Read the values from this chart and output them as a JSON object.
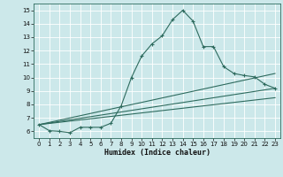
{
  "xlabel": "Humidex (Indice chaleur)",
  "bg_color": "#cce8ea",
  "grid_color": "#ffffff",
  "line_color": "#2e6b5e",
  "xlim": [
    -0.5,
    23.5
  ],
  "ylim": [
    5.5,
    15.5
  ],
  "xticks": [
    0,
    1,
    2,
    3,
    4,
    5,
    6,
    7,
    8,
    9,
    10,
    11,
    12,
    13,
    14,
    15,
    16,
    17,
    18,
    19,
    20,
    21,
    22,
    23
  ],
  "yticks": [
    6,
    7,
    8,
    9,
    10,
    11,
    12,
    13,
    14,
    15
  ],
  "line1_x": [
    0,
    1,
    2,
    3,
    4,
    5,
    6,
    7,
    8,
    9,
    10,
    11,
    12,
    13,
    14,
    15,
    16,
    17,
    18,
    19,
    20,
    21,
    22,
    23
  ],
  "line1_y": [
    6.5,
    6.05,
    6.0,
    5.9,
    6.3,
    6.3,
    6.3,
    6.6,
    7.9,
    10.0,
    11.6,
    12.5,
    13.1,
    14.3,
    15.0,
    14.2,
    12.3,
    12.3,
    10.8,
    10.3,
    10.15,
    10.05,
    9.5,
    9.2
  ],
  "line2_x": [
    0,
    23
  ],
  "line2_y": [
    6.5,
    10.3
  ],
  "line3_x": [
    0,
    23
  ],
  "line3_y": [
    6.5,
    9.2
  ],
  "line4_x": [
    0,
    23
  ],
  "line4_y": [
    6.5,
    8.5
  ],
  "tick_labelsize": 5.0,
  "xlabel_fontsize": 6.0
}
